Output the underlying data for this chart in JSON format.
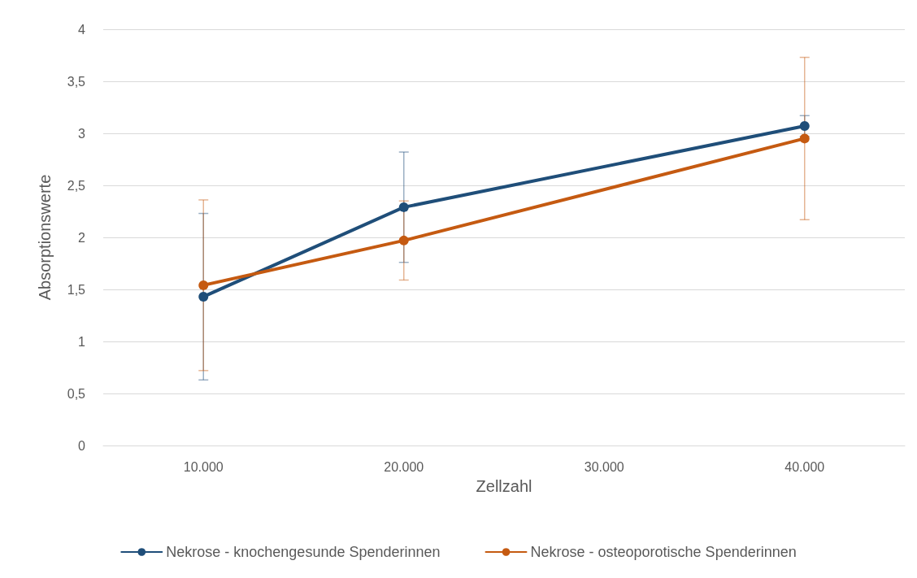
{
  "chart_data": {
    "type": "line",
    "xlabel": "Zellzahl",
    "ylabel": "Absorptionswerte",
    "x": [
      10000,
      20000,
      40000
    ],
    "xlim": [
      5000,
      45000
    ],
    "xticks": [
      {
        "value": 10000,
        "label": "10.000"
      },
      {
        "value": 20000,
        "label": "20.000"
      },
      {
        "value": 30000,
        "label": "30.000"
      },
      {
        "value": 40000,
        "label": "40.000"
      }
    ],
    "ylim": [
      0,
      4
    ],
    "yticks": [
      0,
      {
        "value": 0.5,
        "label": "0,5"
      },
      1,
      {
        "value": 1.5,
        "label": "1,5"
      },
      2,
      {
        "value": 2.5,
        "label": "2,5"
      },
      3,
      {
        "value": 3.5,
        "label": "3,5"
      },
      4
    ],
    "grid": "y",
    "legend": "bottom",
    "marker": "circle",
    "line_style": "solid",
    "series": [
      {
        "name": "Nekrose - knochengesunde Spenderinnen",
        "color": "#1f4e79",
        "values": [
          1.43,
          2.29,
          3.07
        ],
        "errors": [
          0.8,
          0.53,
          0.1
        ]
      },
      {
        "name": "Nekrose - osteoporotische Spenderinnen",
        "color": "#c55a11",
        "values": [
          1.54,
          1.97,
          2.95
        ],
        "errors": [
          0.82,
          0.38,
          0.78
        ]
      }
    ]
  }
}
